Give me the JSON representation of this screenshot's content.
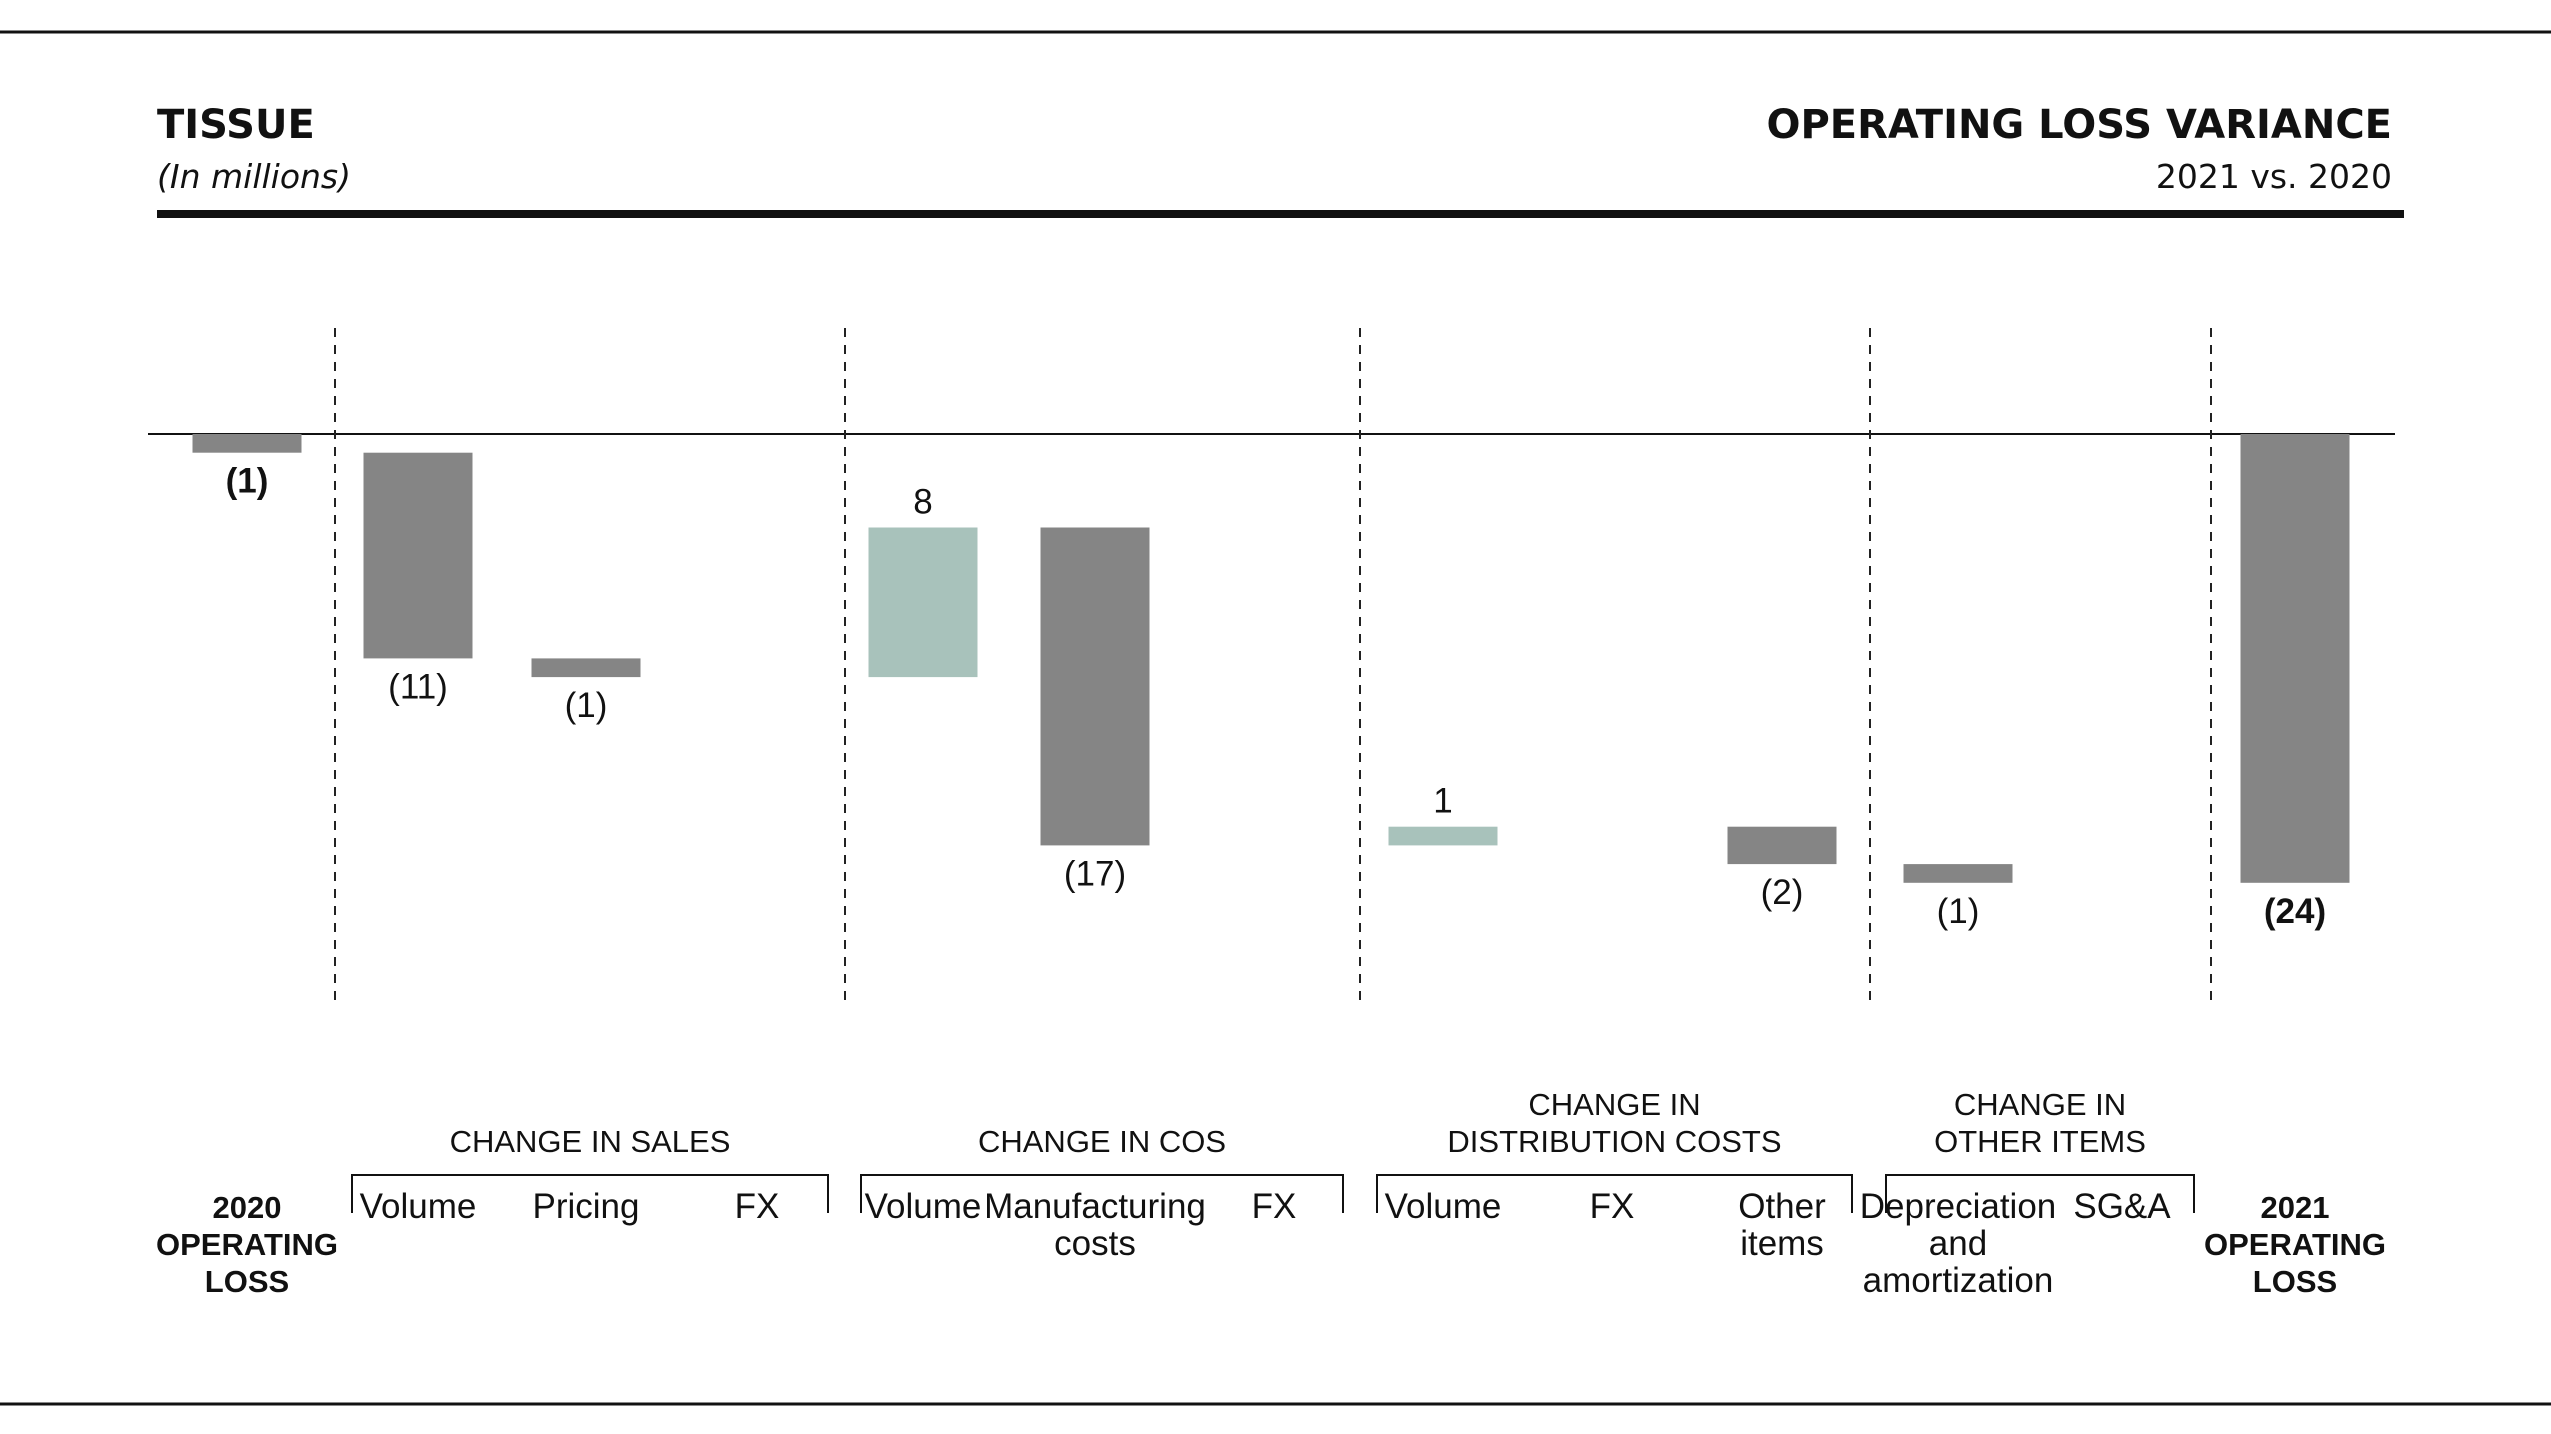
{
  "header": {
    "left_title": "TISSUE",
    "left_subtitle": "(In millions)",
    "right_title": "OPERATING LOSS VARIANCE",
    "right_subtitle": "2021 vs. 2020"
  },
  "chart_data": {
    "type": "bar",
    "subtype": "waterfall",
    "unit": "In millions",
    "colors": {
      "negative": "#858585",
      "positive": "#a8c2bb",
      "total": "#858585"
    },
    "items": [
      {
        "label": "2020\nOPERATING\nLOSS",
        "value": -1,
        "kind": "total",
        "display": "(1)",
        "bold": true
      },
      {
        "label": "Volume",
        "value": -11,
        "kind": "delta",
        "display": "(11)",
        "group": "CHANGE IN SALES"
      },
      {
        "label": "Pricing",
        "value": -1,
        "kind": "delta",
        "display": "(1)",
        "group": "CHANGE IN SALES"
      },
      {
        "label": "FX",
        "value": 0,
        "kind": "delta",
        "display": "",
        "group": "CHANGE IN SALES"
      },
      {
        "label": "Volume",
        "value": 8,
        "kind": "delta",
        "display": "8",
        "group": "CHANGE IN COS"
      },
      {
        "label": "Manufacturing\ncosts",
        "value": -17,
        "kind": "delta",
        "display": "(17)",
        "group": "CHANGE IN COS"
      },
      {
        "label": "FX",
        "value": 0,
        "kind": "delta",
        "display": "",
        "group": "CHANGE IN COS"
      },
      {
        "label": "Volume",
        "value": 1,
        "kind": "delta",
        "display": "1",
        "group": "CHANGE IN\nDISTRIBUTION COSTS"
      },
      {
        "label": "FX",
        "value": 0,
        "kind": "delta",
        "display": "",
        "group": "CHANGE IN\nDISTRIBUTION COSTS"
      },
      {
        "label": "Other\nitems",
        "value": -2,
        "kind": "delta",
        "display": "(2)",
        "group": "CHANGE IN\nDISTRIBUTION COSTS"
      },
      {
        "label": "Depreciation\nand\namortization",
        "value": -1,
        "kind": "delta",
        "display": "(1)",
        "group": "CHANGE IN\nOTHER ITEMS"
      },
      {
        "label": "SG&A",
        "value": 0,
        "kind": "delta",
        "display": "",
        "group": "CHANGE IN\nOTHER ITEMS"
      },
      {
        "label": "2021\nOPERATING\nLOSS",
        "value": -24,
        "kind": "total",
        "display": "(24)",
        "bold": true
      }
    ],
    "groups": [
      {
        "label": "CHANGE IN SALES"
      },
      {
        "label": "CHANGE IN COS"
      },
      {
        "label": "CHANGE IN\nDISTRIBUTION COSTS"
      },
      {
        "label": "CHANGE IN\nOTHER ITEMS"
      }
    ],
    "ylim": [
      -25,
      0
    ]
  }
}
